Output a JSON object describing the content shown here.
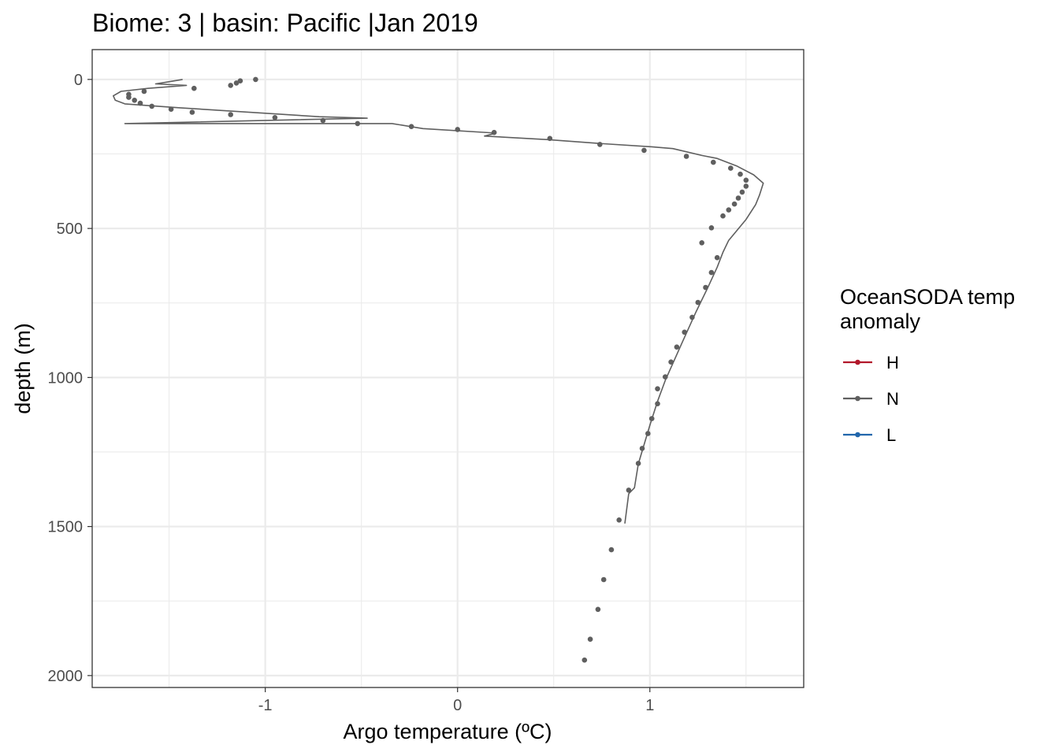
{
  "chart_data": {
    "type": "scatter",
    "title": "Biome: 3 | basin: Pacific  |Jan 2019",
    "xlabel": "Argo temperature (ºC)",
    "ylabel": "depth (m)",
    "xlim": [
      -1.9,
      1.8
    ],
    "ylim": [
      2040,
      -100
    ],
    "y_reversed": true,
    "x_ticks": [
      -1,
      0,
      1
    ],
    "x_tick_labels": [
      "-1",
      "0",
      "1"
    ],
    "x_minor_ticks": [
      -1.5,
      -0.5,
      0.5,
      1.5
    ],
    "y_ticks": [
      0,
      500,
      1000,
      1500,
      2000
    ],
    "y_tick_labels": [
      "0",
      "500",
      "1000",
      "1500",
      "2000"
    ],
    "y_minor_ticks": [
      250,
      750,
      1250,
      1750
    ],
    "grid": true,
    "legend": {
      "title_lines": [
        "OceanSODA temp",
        "anomaly"
      ],
      "placement": "right",
      "entries": [
        {
          "label": "H",
          "color": "#b2182b"
        },
        {
          "label": "N",
          "color": "#5f5f5f"
        },
        {
          "label": "L",
          "color": "#2166ac"
        }
      ]
    },
    "series": [
      {
        "name": "N",
        "color": "#5f5f5f",
        "points": [
          {
            "x": -1.05,
            "y": 0
          },
          {
            "x": -1.13,
            "y": 5
          },
          {
            "x": -1.15,
            "y": 12
          },
          {
            "x": -1.18,
            "y": 20
          },
          {
            "x": -1.37,
            "y": 30
          },
          {
            "x": -1.63,
            "y": 40
          },
          {
            "x": -1.71,
            "y": 50
          },
          {
            "x": -1.71,
            "y": 60
          },
          {
            "x": -1.68,
            "y": 70
          },
          {
            "x": -1.65,
            "y": 80
          },
          {
            "x": -1.59,
            "y": 90
          },
          {
            "x": -1.49,
            "y": 100
          },
          {
            "x": -1.38,
            "y": 110
          },
          {
            "x": -1.18,
            "y": 118
          },
          {
            "x": -0.95,
            "y": 128
          },
          {
            "x": -0.7,
            "y": 138
          },
          {
            "x": -0.52,
            "y": 148
          },
          {
            "x": -0.24,
            "y": 158
          },
          {
            "x": 0.0,
            "y": 168
          },
          {
            "x": 0.19,
            "y": 178
          },
          {
            "x": 0.48,
            "y": 198
          },
          {
            "x": 0.74,
            "y": 218
          },
          {
            "x": 0.97,
            "y": 238
          },
          {
            "x": 1.19,
            "y": 258
          },
          {
            "x": 1.33,
            "y": 278
          },
          {
            "x": 1.42,
            "y": 298
          },
          {
            "x": 1.47,
            "y": 318
          },
          {
            "x": 1.5,
            "y": 338
          },
          {
            "x": 1.5,
            "y": 358
          },
          {
            "x": 1.48,
            "y": 378
          },
          {
            "x": 1.46,
            "y": 398
          },
          {
            "x": 1.44,
            "y": 418
          },
          {
            "x": 1.41,
            "y": 438
          },
          {
            "x": 1.38,
            "y": 458
          },
          {
            "x": 1.32,
            "y": 498
          },
          {
            "x": 1.27,
            "y": 548
          },
          {
            "x": 1.35,
            "y": 598
          },
          {
            "x": 1.32,
            "y": 648
          },
          {
            "x": 1.29,
            "y": 698
          },
          {
            "x": 1.25,
            "y": 748
          },
          {
            "x": 1.22,
            "y": 798
          },
          {
            "x": 1.18,
            "y": 848
          },
          {
            "x": 1.14,
            "y": 898
          },
          {
            "x": 1.11,
            "y": 948
          },
          {
            "x": 1.08,
            "y": 998
          },
          {
            "x": 1.04,
            "y": 1038
          },
          {
            "x": 1.04,
            "y": 1088
          },
          {
            "x": 1.01,
            "y": 1138
          },
          {
            "x": 0.99,
            "y": 1188
          },
          {
            "x": 0.96,
            "y": 1238
          },
          {
            "x": 0.94,
            "y": 1288
          },
          {
            "x": 0.89,
            "y": 1378
          },
          {
            "x": 0.84,
            "y": 1478
          },
          {
            "x": 0.8,
            "y": 1578
          },
          {
            "x": 0.76,
            "y": 1678
          },
          {
            "x": 0.73,
            "y": 1778
          },
          {
            "x": 0.69,
            "y": 1878
          },
          {
            "x": 0.66,
            "y": 1948
          }
        ],
        "line": [
          {
            "x": -1.43,
            "y": 0
          },
          {
            "x": -1.52,
            "y": 10
          },
          {
            "x": -1.57,
            "y": 15
          },
          {
            "x": -1.41,
            "y": 20
          },
          {
            "x": -1.61,
            "y": 30
          },
          {
            "x": -1.75,
            "y": 40
          },
          {
            "x": -1.79,
            "y": 55
          },
          {
            "x": -1.78,
            "y": 70
          },
          {
            "x": -1.73,
            "y": 82
          },
          {
            "x": -1.45,
            "y": 95
          },
          {
            "x": -0.72,
            "y": 125
          },
          {
            "x": -0.47,
            "y": 130
          },
          {
            "x": -1.73,
            "y": 148
          },
          {
            "x": -0.34,
            "y": 148
          },
          {
            "x": -0.18,
            "y": 165
          },
          {
            "x": 0.2,
            "y": 180
          },
          {
            "x": 0.14,
            "y": 190
          },
          {
            "x": 0.47,
            "y": 202
          },
          {
            "x": 0.74,
            "y": 215
          },
          {
            "x": 1.01,
            "y": 226
          },
          {
            "x": 1.12,
            "y": 232
          },
          {
            "x": 1.27,
            "y": 255
          },
          {
            "x": 1.35,
            "y": 265
          },
          {
            "x": 1.45,
            "y": 290
          },
          {
            "x": 1.54,
            "y": 320
          },
          {
            "x": 1.59,
            "y": 348
          },
          {
            "x": 1.57,
            "y": 388
          },
          {
            "x": 1.55,
            "y": 420
          },
          {
            "x": 1.5,
            "y": 470
          },
          {
            "x": 1.41,
            "y": 540
          },
          {
            "x": 1.38,
            "y": 580
          },
          {
            "x": 1.35,
            "y": 630
          },
          {
            "x": 1.3,
            "y": 700
          },
          {
            "x": 1.24,
            "y": 780
          },
          {
            "x": 1.17,
            "y": 880
          },
          {
            "x": 1.08,
            "y": 1010
          },
          {
            "x": 1.04,
            "y": 1080
          },
          {
            "x": 1.0,
            "y": 1160
          },
          {
            "x": 0.94,
            "y": 1290
          },
          {
            "x": 0.92,
            "y": 1370
          },
          {
            "x": 0.89,
            "y": 1390
          },
          {
            "x": 0.87,
            "y": 1490
          }
        ]
      },
      {
        "name": "H",
        "color": "#b2182b",
        "points": [],
        "line": []
      },
      {
        "name": "L",
        "color": "#2166ac",
        "points": [],
        "line": []
      }
    ]
  }
}
